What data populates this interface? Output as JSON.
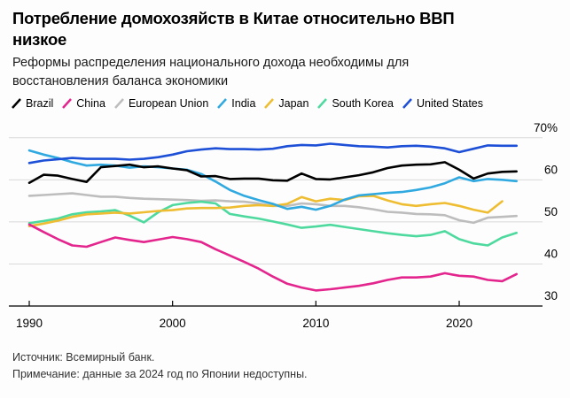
{
  "header": {
    "title_lines": [
      "Потребление домохозяйств в Китае относительно ВВП",
      "низкое"
    ],
    "subtitle_lines": [
      "Реформы распределения национального дохода необходимы для",
      "восстановления баланса экономики"
    ]
  },
  "footer": {
    "source": "Источник: Всемирный банк.",
    "note": "Примечание: данные за 2024 год по Японии недоступны."
  },
  "chart_data": {
    "type": "line",
    "title": "Потребление домохозяйств в Китае относительно ВВП низкое",
    "subtitle": "Реформы распределения национального дохода необходимы для восстановления баланса экономики",
    "grid": true,
    "legend_position": "top",
    "ylabel": "",
    "xlabel": "",
    "ylim": [
      30,
      70
    ],
    "yticks": [
      30,
      40,
      50,
      60,
      70
    ],
    "ytick_labels": [
      "30",
      "40",
      "50",
      "60",
      "70%"
    ],
    "xticks": [
      1990,
      2000,
      2010,
      2020
    ],
    "x": [
      1990,
      1991,
      1992,
      1993,
      1994,
      1995,
      1996,
      1997,
      1998,
      1999,
      2000,
      2001,
      2002,
      2003,
      2004,
      2005,
      2006,
      2007,
      2008,
      2009,
      2010,
      2011,
      2012,
      2013,
      2014,
      2015,
      2016,
      2017,
      2018,
      2019,
      2020,
      2021,
      2022,
      2023,
      2024
    ],
    "colors": {
      "grid": "#d9d9d9",
      "axis": "#000000",
      "tick_text": "#000000"
    },
    "series": [
      {
        "name": "Brazil",
        "color": "#000000",
        "values": [
          59.3,
          61.2,
          61.0,
          60.2,
          59.5,
          63.0,
          63.3,
          63.6,
          63.0,
          63.2,
          62.7,
          62.3,
          60.8,
          60.9,
          60.2,
          60.3,
          60.3,
          59.9,
          59.8,
          61.5,
          60.2,
          60.1,
          60.6,
          61.1,
          61.8,
          62.8,
          63.4,
          63.6,
          63.7,
          64.2,
          62.4,
          60.3,
          61.5,
          61.9,
          62.0
        ]
      },
      {
        "name": "China",
        "color": "#e3258d",
        "values": [
          49.4,
          47.6,
          45.9,
          44.4,
          44.1,
          45.2,
          46.3,
          45.7,
          45.2,
          45.8,
          46.4,
          45.9,
          45.2,
          43.5,
          42.0,
          40.5,
          38.9,
          37.0,
          35.3,
          34.4,
          33.7,
          34.0,
          34.4,
          34.8,
          35.4,
          36.2,
          36.8,
          36.8,
          37.0,
          37.8,
          37.2,
          37.0,
          36.2,
          35.9,
          37.6
        ]
      },
      {
        "name": "European Union",
        "color": "#bdbdbd",
        "values": [
          56.2,
          56.4,
          56.6,
          56.8,
          56.4,
          56.0,
          56.0,
          55.7,
          55.5,
          55.4,
          55.3,
          55.2,
          55.0,
          55.1,
          54.9,
          54.8,
          54.4,
          53.8,
          53.8,
          54.4,
          54.2,
          53.8,
          53.8,
          53.5,
          53.0,
          52.4,
          52.2,
          51.9,
          51.8,
          51.6,
          50.4,
          49.8,
          51.0,
          51.2,
          51.4
        ]
      },
      {
        "name": "India",
        "color": "#2fa9e0",
        "values": [
          67.0,
          66.0,
          65.2,
          64.2,
          63.4,
          63.6,
          63.4,
          62.9,
          63.2,
          63.0,
          62.7,
          62.4,
          61.4,
          59.6,
          57.6,
          56.2,
          55.2,
          54.3,
          53.1,
          53.6,
          52.9,
          53.8,
          55.3,
          56.3,
          56.6,
          56.9,
          57.1,
          57.6,
          58.2,
          59.2,
          60.6,
          59.7,
          60.2,
          60.0,
          59.7
        ]
      },
      {
        "name": "Japan",
        "color": "#eebd31",
        "values": [
          49.0,
          49.6,
          50.3,
          51.2,
          51.8,
          52.0,
          52.2,
          52.0,
          52.3,
          52.6,
          52.8,
          53.2,
          53.3,
          53.3,
          53.4,
          53.8,
          54.0,
          53.8,
          54.3,
          55.9,
          54.9,
          55.5,
          55.2,
          56.1,
          56.2,
          55.1,
          54.2,
          53.8,
          54.2,
          54.5,
          53.8,
          52.9,
          52.2,
          54.9,
          null
        ]
      },
      {
        "name": "South Korea",
        "color": "#4ed99e",
        "values": [
          49.7,
          50.2,
          50.8,
          51.8,
          52.3,
          52.5,
          52.8,
          51.5,
          49.9,
          52.3,
          54.0,
          54.5,
          54.8,
          54.4,
          51.9,
          51.3,
          50.8,
          50.1,
          49.4,
          48.6,
          48.9,
          49.3,
          48.8,
          48.3,
          47.8,
          47.3,
          46.9,
          46.6,
          46.9,
          47.8,
          45.9,
          44.9,
          44.4,
          46.3,
          47.4
        ]
      },
      {
        "name": "United States",
        "color": "#1d4fd7",
        "values": [
          64.0,
          64.6,
          64.9,
          65.2,
          65.0,
          65.0,
          65.0,
          64.8,
          65.0,
          65.4,
          66.0,
          66.8,
          67.2,
          67.5,
          67.3,
          67.3,
          67.2,
          67.4,
          68.0,
          68.3,
          68.2,
          68.6,
          68.3,
          68.0,
          67.9,
          67.7,
          68.0,
          68.1,
          67.9,
          67.5,
          66.6,
          67.4,
          68.2,
          68.1,
          68.1
        ]
      }
    ]
  }
}
